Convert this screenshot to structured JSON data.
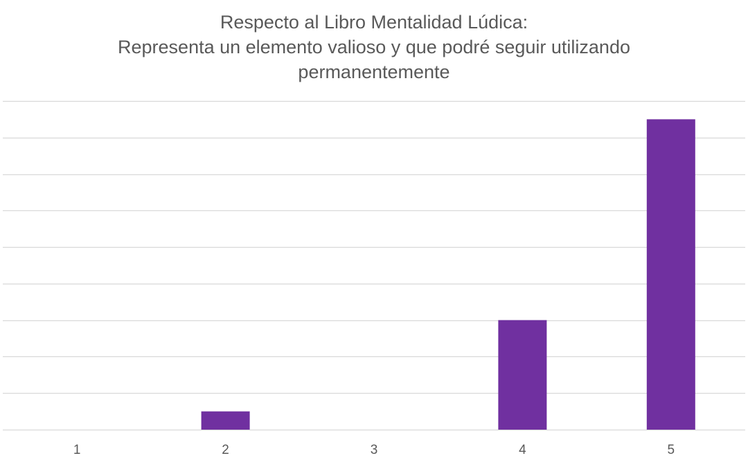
{
  "chart_data": {
    "type": "bar",
    "title_lines": [
      "Respecto al Libro Mentalidad Lúdica:",
      "Representa un elemento valioso y que podré seguir utilizando",
      "permanentemente"
    ],
    "categories": [
      "1",
      "2",
      "3",
      "4",
      "5"
    ],
    "values": [
      0,
      0.5,
      0,
      3,
      8.5
    ],
    "ylim": [
      0,
      9
    ],
    "grid": true,
    "y_tick_labels_visible": false,
    "legend": "none",
    "colors": {
      "bar": "#7030A0",
      "grid": "#D9D9D9",
      "text": "#595959"
    }
  }
}
